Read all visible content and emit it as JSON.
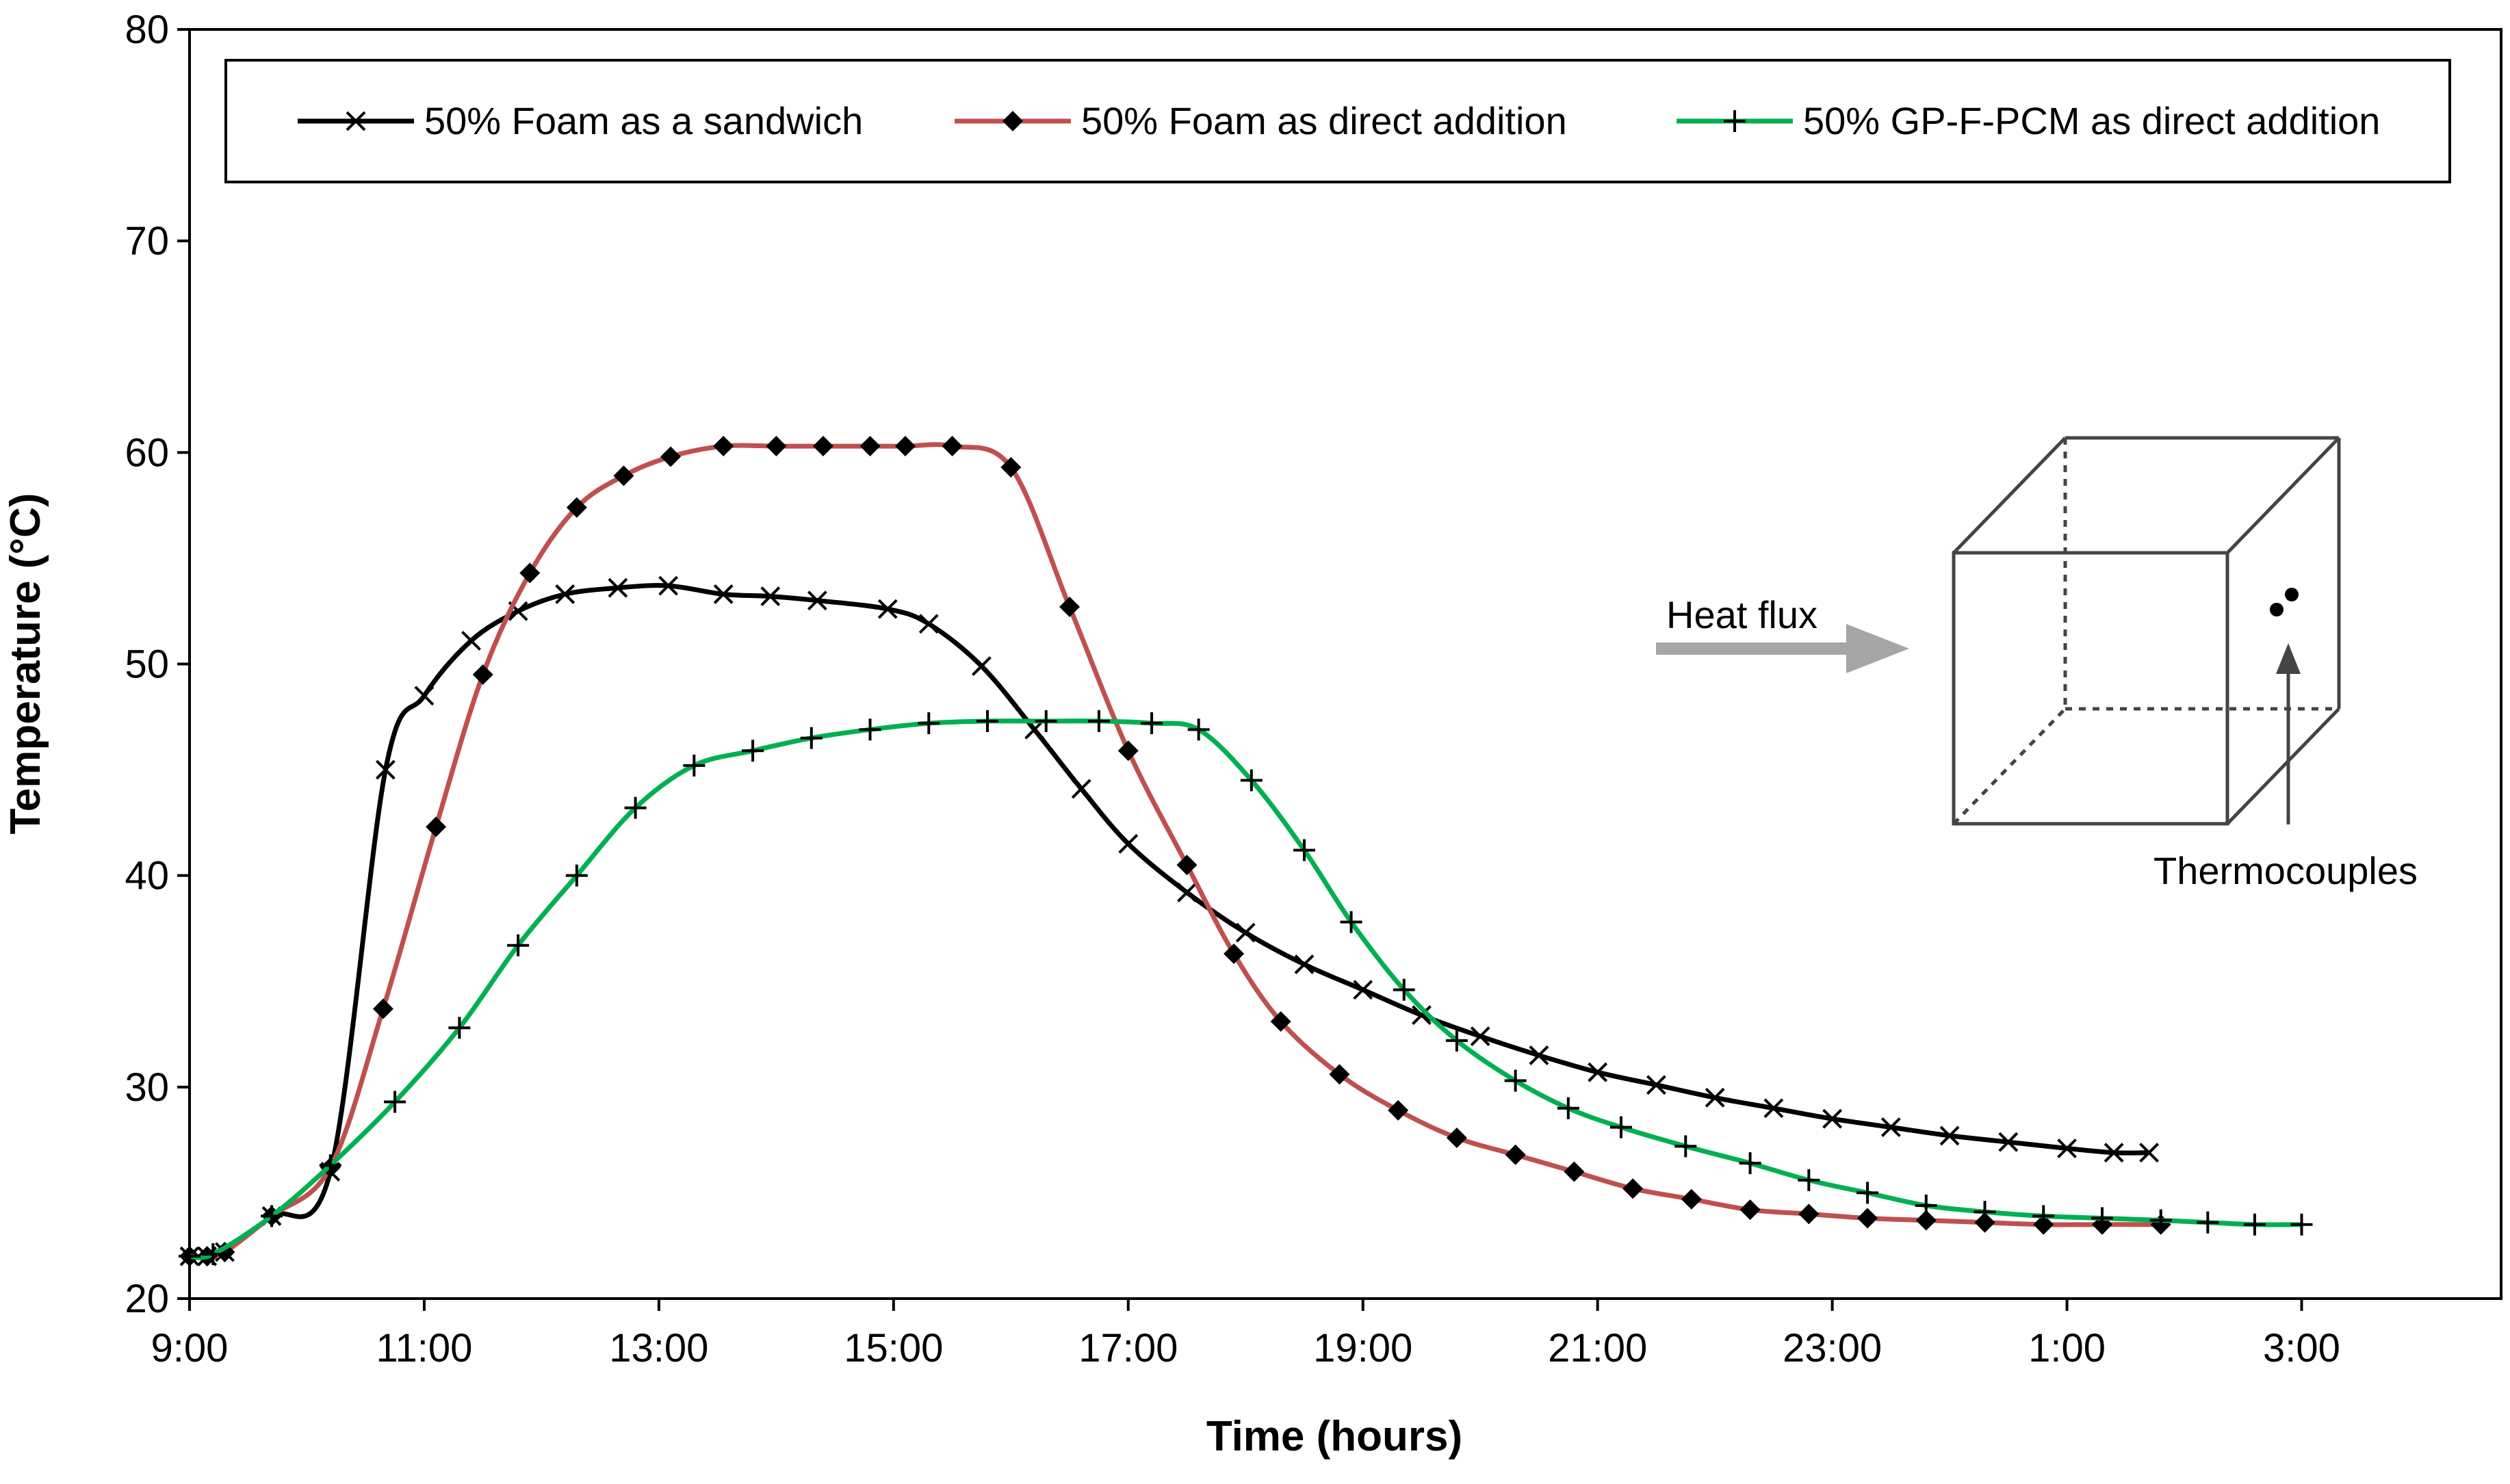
{
  "chart_data": {
    "type": "line",
    "title": "",
    "xlabel": "Time (hours)",
    "ylabel": "Temperature (°C)",
    "xlim": [
      9,
      28.7
    ],
    "ylim": [
      20,
      80
    ],
    "y_ticks": [
      20,
      30,
      40,
      50,
      60,
      70,
      80
    ],
    "x_ticks": [
      {
        "value": 9,
        "label": "9:00"
      },
      {
        "value": 11,
        "label": "11:00"
      },
      {
        "value": 13,
        "label": "13:00"
      },
      {
        "value": 15,
        "label": "15:00"
      },
      {
        "value": 17,
        "label": "17:00"
      },
      {
        "value": 19,
        "label": "19:00"
      },
      {
        "value": 21,
        "label": "21:00"
      },
      {
        "value": 23,
        "label": "23:00"
      },
      {
        "value": 25,
        "label": "1:00"
      },
      {
        "value": 27,
        "label": "3:00"
      }
    ],
    "legend_position": "top",
    "series": [
      {
        "name": "50% Foam as a sandwich",
        "color": "#000000",
        "marker": "x",
        "points": [
          [
            9,
            22.0
          ],
          [
            9.15,
            22.0
          ],
          [
            9.3,
            22.2
          ],
          [
            9.7,
            23.9
          ],
          [
            10.2,
            26.0
          ],
          [
            10.67,
            45.0
          ],
          [
            11.0,
            48.5
          ],
          [
            11.4,
            51.1
          ],
          [
            11.8,
            52.5
          ],
          [
            12.2,
            53.3
          ],
          [
            12.65,
            53.6
          ],
          [
            13.08,
            53.7
          ],
          [
            13.55,
            53.3
          ],
          [
            13.95,
            53.2
          ],
          [
            14.35,
            53.0
          ],
          [
            14.95,
            52.6
          ],
          [
            15.3,
            51.9
          ],
          [
            15.75,
            49.9
          ],
          [
            16.2,
            46.9
          ],
          [
            16.6,
            44.1
          ],
          [
            17.0,
            41.5
          ],
          [
            17.5,
            39.2
          ],
          [
            18.0,
            37.3
          ],
          [
            18.5,
            35.8
          ],
          [
            19.0,
            34.6
          ],
          [
            19.5,
            33.4
          ],
          [
            20.0,
            32.4
          ],
          [
            20.5,
            31.5
          ],
          [
            21.0,
            30.7
          ],
          [
            21.5,
            30.1
          ],
          [
            22.0,
            29.5
          ],
          [
            22.5,
            29.0
          ],
          [
            23.0,
            28.5
          ],
          [
            23.5,
            28.1
          ],
          [
            24.0,
            27.7
          ],
          [
            24.5,
            27.4
          ],
          [
            25.0,
            27.1
          ],
          [
            25.4,
            26.9
          ],
          [
            25.7,
            26.9
          ]
        ]
      },
      {
        "name": "50% Foam as direct addition",
        "color": "#C0504D",
        "marker": "diamond",
        "points": [
          [
            9,
            22.0
          ],
          [
            9.15,
            22.0
          ],
          [
            9.3,
            22.2
          ],
          [
            9.7,
            23.9
          ],
          [
            10.2,
            26.2
          ],
          [
            10.65,
            33.7
          ],
          [
            11.1,
            42.3
          ],
          [
            11.5,
            49.5
          ],
          [
            11.9,
            54.3
          ],
          [
            12.3,
            57.4
          ],
          [
            12.7,
            58.9
          ],
          [
            13.1,
            59.8
          ],
          [
            13.55,
            60.3
          ],
          [
            14.0,
            60.3
          ],
          [
            14.4,
            60.3
          ],
          [
            14.8,
            60.3
          ],
          [
            15.1,
            60.3
          ],
          [
            15.5,
            60.3
          ],
          [
            16.0,
            59.3
          ],
          [
            16.5,
            52.7
          ],
          [
            17.0,
            45.9
          ],
          [
            17.5,
            40.5
          ],
          [
            17.9,
            36.3
          ],
          [
            18.3,
            33.1
          ],
          [
            18.8,
            30.6
          ],
          [
            19.3,
            28.9
          ],
          [
            19.8,
            27.6
          ],
          [
            20.3,
            26.8
          ],
          [
            20.8,
            26.0
          ],
          [
            21.3,
            25.2
          ],
          [
            21.8,
            24.7
          ],
          [
            22.3,
            24.2
          ],
          [
            22.8,
            24.0
          ],
          [
            23.3,
            23.8
          ],
          [
            23.8,
            23.7
          ],
          [
            24.3,
            23.6
          ],
          [
            24.8,
            23.5
          ],
          [
            25.3,
            23.5
          ],
          [
            25.8,
            23.5
          ]
        ]
      },
      {
        "name": "50% GP-F-PCM as direct addition",
        "color": "#00B050",
        "marker": "plus",
        "points": [
          [
            9,
            22.0
          ],
          [
            9.2,
            22.1
          ],
          [
            9.7,
            23.9
          ],
          [
            10.2,
            26.3
          ],
          [
            10.75,
            29.3
          ],
          [
            11.3,
            32.8
          ],
          [
            11.8,
            36.7
          ],
          [
            12.3,
            40.0
          ],
          [
            12.8,
            43.2
          ],
          [
            13.3,
            45.2
          ],
          [
            13.8,
            45.9
          ],
          [
            14.3,
            46.5
          ],
          [
            14.8,
            46.9
          ],
          [
            15.3,
            47.2
          ],
          [
            15.8,
            47.3
          ],
          [
            16.3,
            47.3
          ],
          [
            16.75,
            47.3
          ],
          [
            17.2,
            47.2
          ],
          [
            17.6,
            46.9
          ],
          [
            18.05,
            44.5
          ],
          [
            18.5,
            41.2
          ],
          [
            18.9,
            37.8
          ],
          [
            19.35,
            34.6
          ],
          [
            19.8,
            32.2
          ],
          [
            20.3,
            30.3
          ],
          [
            20.75,
            29.0
          ],
          [
            21.2,
            28.1
          ],
          [
            21.75,
            27.2
          ],
          [
            22.3,
            26.4
          ],
          [
            22.8,
            25.6
          ],
          [
            23.3,
            25.0
          ],
          [
            23.8,
            24.4
          ],
          [
            24.3,
            24.1
          ],
          [
            24.8,
            23.9
          ],
          [
            25.3,
            23.8
          ],
          [
            25.8,
            23.7
          ],
          [
            26.2,
            23.6
          ],
          [
            26.6,
            23.5
          ],
          [
            27.0,
            23.5
          ]
        ]
      }
    ],
    "annotation": {
      "heat_flux_label": "Heat flux",
      "thermocouples_label": "Thermocouples"
    }
  }
}
